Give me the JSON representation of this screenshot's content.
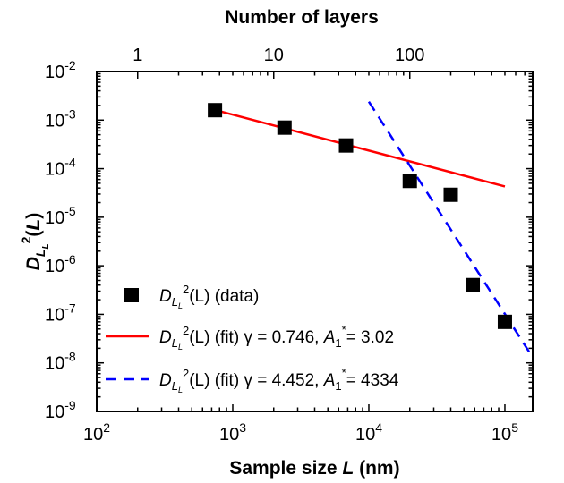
{
  "chart_data": {
    "type": "scatter",
    "title": "",
    "xlabel": {
      "text": "Sample size",
      "var": "L",
      "unit": "(nm)"
    },
    "ylabel": {
      "base": "D",
      "sub": "L",
      "subsub": "L",
      "sup": "2",
      "arg_open": "(",
      "arg_var": "L",
      "arg_close": ")"
    },
    "top_xlabel": "Number of layers",
    "x_scale": "log",
    "y_scale": "log",
    "xlim": [
      100,
      160000
    ],
    "ylim": [
      1e-09,
      0.01
    ],
    "x_ticks": [
      {
        "value": 100,
        "base": "10",
        "exp": "2"
      },
      {
        "value": 1000,
        "base": "10",
        "exp": "3"
      },
      {
        "value": 10000,
        "base": "10",
        "exp": "4"
      },
      {
        "value": 100000,
        "base": "10",
        "exp": "5"
      }
    ],
    "y_ticks": [
      {
        "value": 1e-09,
        "base": "10",
        "exp": "-9"
      },
      {
        "value": 1e-08,
        "base": "10",
        "exp": "-8"
      },
      {
        "value": 1e-07,
        "base": "10",
        "exp": "-7"
      },
      {
        "value": 1e-06,
        "base": "10",
        "exp": "-6"
      },
      {
        "value": 1e-05,
        "base": "10",
        "exp": "-5"
      },
      {
        "value": 0.0001,
        "base": "10",
        "exp": "-4"
      },
      {
        "value": 0.001,
        "base": "10",
        "exp": "-3"
      },
      {
        "value": 0.01,
        "base": "10",
        "exp": "-2"
      }
    ],
    "top_ticks": [
      {
        "layers": 1,
        "label": "1"
      },
      {
        "layers": 10,
        "label": "10"
      },
      {
        "layers": 100,
        "label": "100"
      }
    ],
    "top_axis_nm_per_layer": 200,
    "series": [
      {
        "kind": "data",
        "marker": "square",
        "color": "#000000",
        "legend": {
          "base": "D",
          "sub": "L",
          "subsub": "L",
          "sup": "2",
          "rest": "(L) (data)"
        },
        "x": [
          740,
          2400,
          6800,
          20000,
          40000,
          58000,
          100000
        ],
        "y": [
          0.0016,
          0.0007,
          0.0003,
          5.6e-05,
          2.9e-05,
          4e-07,
          7e-08
        ]
      },
      {
        "kind": "fit",
        "style": "solid",
        "color": "#ff0000",
        "legend": {
          "base": "D",
          "sub": "L",
          "subsub": "L",
          "sup": "2",
          "fit": "(L) (fit)",
          "gamma": "γ = 0.746,",
          "amp": "A",
          "amp_sub": "1",
          "amp_sup": "*",
          "amp_val": "= 3.02"
        },
        "x": [
          720,
          100000
        ],
        "y": [
          0.00165,
          4.3e-05
        ]
      },
      {
        "kind": "fit",
        "style": "dashed",
        "color": "#0000ff",
        "legend": {
          "base": "D",
          "sub": "L",
          "subsub": "L",
          "sup": "2",
          "fit": "(L) (fit)",
          "gamma": "γ = 4.452,",
          "amp": "A",
          "amp_sub": "1",
          "amp_sup": "*",
          "amp_val": "= 4334"
        },
        "x": [
          10000,
          160000
        ],
        "y": [
          0.0024,
          1.3e-08
        ]
      }
    ],
    "legend_position": "bottom-left",
    "grid": false
  }
}
